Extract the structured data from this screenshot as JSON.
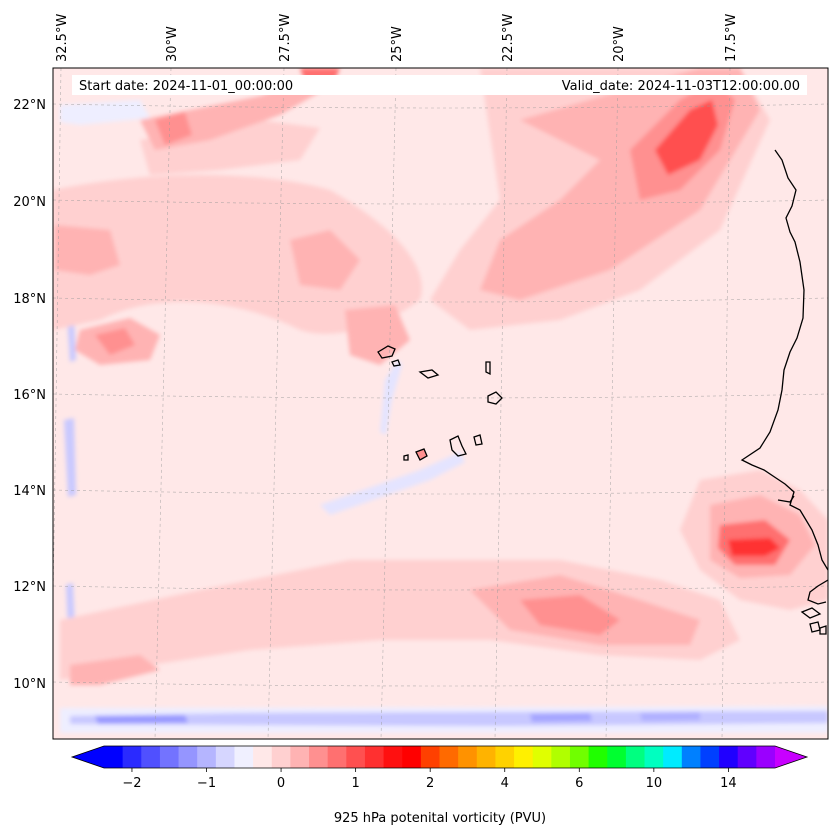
{
  "header": {
    "start_label": "Start date: 2024-11-01_00:00:00",
    "valid_label": "Valid_date: 2024-11-03T12:00:00.00"
  },
  "map": {
    "lon_labels": [
      "32.5°W",
      "30°W",
      "27.5°W",
      "25°W",
      "22.5°W",
      "20°W",
      "17.5°W"
    ],
    "lat_labels": [
      "22°N",
      "20°N",
      "18°N",
      "16°N",
      "14°N",
      "12°N",
      "10°N"
    ],
    "extent": {
      "lon_min": -33.0,
      "lon_max": -15.2,
      "lat_min": 8.9,
      "lat_max": 22.8
    }
  },
  "colorbar": {
    "title": "925 hPa potenital vorticity (PVU)",
    "tick_labels": [
      "−2",
      "−1",
      "0",
      "1",
      "2",
      "4",
      "6",
      "10",
      "14"
    ],
    "colors": [
      "#0000ff",
      "#2a2aff",
      "#5050ff",
      "#7373ff",
      "#9595ff",
      "#b5b5ff",
      "#d6d6ff",
      "#f0f0ff",
      "#ffe8e8",
      "#ffd0d0",
      "#ffb3b3",
      "#ff9090",
      "#ff7070",
      "#ff5050",
      "#ff3030",
      "#ff1010",
      "#ff0000",
      "#ff4000",
      "#ff6a00",
      "#ff9200",
      "#ffb300",
      "#ffd200",
      "#fff000",
      "#e0ff00",
      "#b0ff00",
      "#70ff00",
      "#20ff00",
      "#00ff30",
      "#00ff80",
      "#00ffc0",
      "#00ebff",
      "#0080ff",
      "#0040ff",
      "#2000ff",
      "#6000ff",
      "#9a00ff"
    ],
    "under_color": "#0000ff",
    "over_color": "#c800ff"
  }
}
